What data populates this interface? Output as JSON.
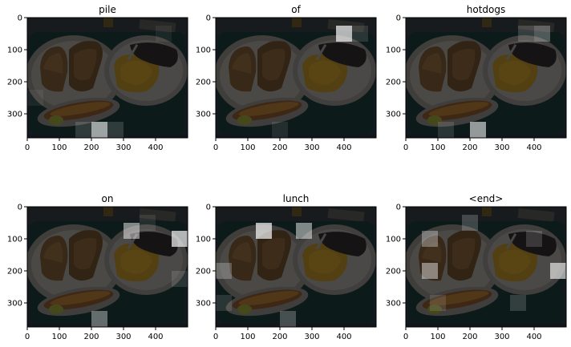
{
  "chart_data": {
    "type": "heatmap",
    "description_kind": "attention overlays on an image",
    "x_ticks": [
      0,
      100,
      200,
      300,
      400
    ],
    "y_ticks": [
      0,
      100,
      200,
      300
    ],
    "xlim": [
      0,
      500
    ],
    "ylim": [
      375,
      0
    ],
    "grid": false,
    "cell_size": 50,
    "panels": [
      {
        "title": "pile",
        "cells": [
          {
            "x": 200,
            "y": 325,
            "w": 0.75
          },
          {
            "x": 150,
            "y": 325,
            "w": 0.18
          },
          {
            "x": 250,
            "y": 325,
            "w": 0.18
          },
          {
            "x": 0,
            "y": 225,
            "w": 0.08
          },
          {
            "x": 400,
            "y": 25,
            "w": 0.08
          }
        ]
      },
      {
        "title": "of",
        "cells": [
          {
            "x": 375,
            "y": 25,
            "w": 0.85
          },
          {
            "x": 425,
            "y": 25,
            "w": 0.15
          },
          {
            "x": 175,
            "y": 325,
            "w": 0.12
          }
        ]
      },
      {
        "title": "hotdogs",
        "cells": [
          {
            "x": 200,
            "y": 325,
            "w": 0.7
          },
          {
            "x": 400,
            "y": 25,
            "w": 0.35
          },
          {
            "x": 350,
            "y": 25,
            "w": 0.2
          },
          {
            "x": 100,
            "y": 325,
            "w": 0.15
          }
        ]
      },
      {
        "title": "on",
        "cells": [
          {
            "x": 450,
            "y": 75,
            "w": 0.85
          },
          {
            "x": 300,
            "y": 50,
            "w": 0.6
          },
          {
            "x": 200,
            "y": 325,
            "w": 0.45
          },
          {
            "x": 450,
            "y": 200,
            "w": 0.15
          },
          {
            "x": 350,
            "y": 25,
            "w": 0.12
          }
        ]
      },
      {
        "title": "lunch",
        "cells": [
          {
            "x": 125,
            "y": 50,
            "w": 0.85
          },
          {
            "x": 250,
            "y": 50,
            "w": 0.6
          },
          {
            "x": 0,
            "y": 175,
            "w": 0.3
          },
          {
            "x": 200,
            "y": 325,
            "w": 0.3
          },
          {
            "x": 0,
            "y": 275,
            "w": 0.15
          }
        ]
      },
      {
        "title": "<end>",
        "cells": [
          {
            "x": 450,
            "y": 175,
            "w": 0.75
          },
          {
            "x": 50,
            "y": 175,
            "w": 0.55
          },
          {
            "x": 50,
            "y": 75,
            "w": 0.4
          },
          {
            "x": 175,
            "y": 25,
            "w": 0.25
          },
          {
            "x": 375,
            "y": 75,
            "w": 0.2
          },
          {
            "x": 325,
            "y": 275,
            "w": 0.2
          },
          {
            "x": 75,
            "y": 275,
            "w": 0.15
          }
        ]
      }
    ]
  }
}
